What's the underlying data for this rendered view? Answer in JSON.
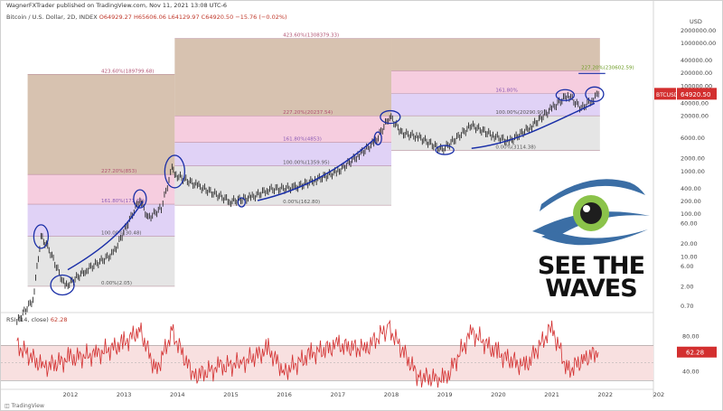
{
  "header": {
    "publisher": "WagnerFXTrader published on TradingView.com, Nov 11, 2021 13:08 UTC-6",
    "symbol": "Bitcoin / U.S. Dollar, 2D, INDEX",
    "ohlc": "O64929.27 H65606.06 L64129.97 C64920.50 −15.76 (−0.02%)"
  },
  "price_axis_title": "USD",
  "price_badge": {
    "symbol": "BTCUSD",
    "price": "64920.50"
  },
  "rsi": {
    "label": "RSI (14, close)",
    "value": "62.28",
    "current": "62.28"
  },
  "footer": "TradingView",
  "logo": {
    "line1": "SEE THE",
    "line2": "WAVES"
  },
  "colors": {
    "candles": "#2a2a2a",
    "rsi": "#d32f2f",
    "annotation": "#1a2fa8",
    "fib_top": "#c9ad96",
    "fib_pink": "#f3bcd4",
    "fib_lavender": "#d5c3f3",
    "fib_gray": "#dcdcdc",
    "logo_blue": "#3b6ea5",
    "logo_green": "#8bc34a"
  },
  "chart_data": [
    {
      "type": "line",
      "title": "Bitcoin / U.S. Dollar, 2D, INDEX",
      "x_ticks": [
        "2012",
        "2013",
        "2014",
        "2015",
        "2016",
        "2017",
        "2018",
        "2019",
        "2020",
        "2021",
        "2022",
        "202"
      ],
      "y_scale": "log",
      "y_ticks": [
        "2000000.00",
        "1000000.00",
        "400000.00",
        "200000.00",
        "100000.00",
        "40000.00",
        "20000.00",
        "6000.00",
        "2000.00",
        "1000.00",
        "400.00",
        "200.00",
        "100.00",
        "60.00",
        "20.00",
        "10.00",
        "6.00",
        "2.00",
        "0.70"
      ],
      "series": [
        {
          "x": [
            2011.0,
            2011.3,
            2011.45,
            2011.6,
            2011.9,
            2012.3,
            2012.8,
            2013.3,
            2013.45,
            2013.7,
            2013.9,
            2014.0,
            2014.4,
            2015.0,
            2015.4,
            2015.7,
            2016.2,
            2016.6,
            2017.0,
            2017.4,
            2017.7,
            2017.97,
            2018.2,
            2018.5,
            2018.95,
            2019.5,
            2019.9,
            2020.2,
            2020.6,
            2021.0,
            2021.3,
            2021.55,
            2021.75,
            2021.87
          ],
          "y": [
            0.3,
            1,
            30,
            15,
            2,
            5,
            12,
            230,
            80,
            140,
            1150,
            800,
            450,
            200,
            250,
            380,
            420,
            650,
            1000,
            2500,
            5000,
            19800,
            8000,
            6500,
            3200,
            12000,
            7000,
            5000,
            11000,
            30000,
            63000,
            30000,
            48000,
            64920
          ]
        }
      ],
      "fib_levels": [
        {
          "label": "0.00%(2.05)",
          "price": 2.05
        },
        {
          "label": "100.00%(30.48)",
          "price": 30.48
        },
        {
          "label": "161.80%(171.66)",
          "price": 171.66
        },
        {
          "label": "227.20%(853)",
          "price": 853
        },
        {
          "label": "423.60%(189799.68)",
          "price": 189799.68
        },
        {
          "label": "0.00%(162.80)",
          "price": 162.8
        },
        {
          "label": "100.00%(1359.95)",
          "price": 1359.95
        },
        {
          "label": "161.80%(4853)",
          "price": 4853
        },
        {
          "label": "227.20%(20237.54)",
          "price": 20237.54
        },
        {
          "label": "423.60%(1308379.33)",
          "price": 1308379.33
        },
        {
          "label": "0.00%(3114.38)",
          "price": 3114.38
        },
        {
          "label": "100.00%(20290.99)",
          "price": 20290.99
        },
        {
          "label": "161.80%",
          "price": 68000
        },
        {
          "label": "227.20%(230602.59)",
          "price": 230602.59
        }
      ]
    },
    {
      "type": "line",
      "title": "RSI (14, close)",
      "y_ticks": [
        "80.00",
        "40.00"
      ],
      "ylim": [
        20,
        100
      ],
      "series": [
        {
          "x": [
            2011.0,
            2011.5,
            2012.0,
            2012.5,
            2013.0,
            2013.3,
            2013.6,
            2013.9,
            2014.3,
            2014.8,
            2015.2,
            2015.7,
            2016.0,
            2016.5,
            2017.0,
            2017.5,
            2017.95,
            2018.5,
            2019.0,
            2019.5,
            2020.0,
            2020.5,
            2021.0,
            2021.3,
            2021.6,
            2021.87
          ],
          "y": [
            70,
            45,
            55,
            60,
            72,
            88,
            40,
            85,
            35,
            45,
            50,
            65,
            40,
            60,
            70,
            65,
            90,
            35,
            30,
            85,
            60,
            45,
            90,
            40,
            55,
            62.28
          ]
        }
      ]
    }
  ]
}
